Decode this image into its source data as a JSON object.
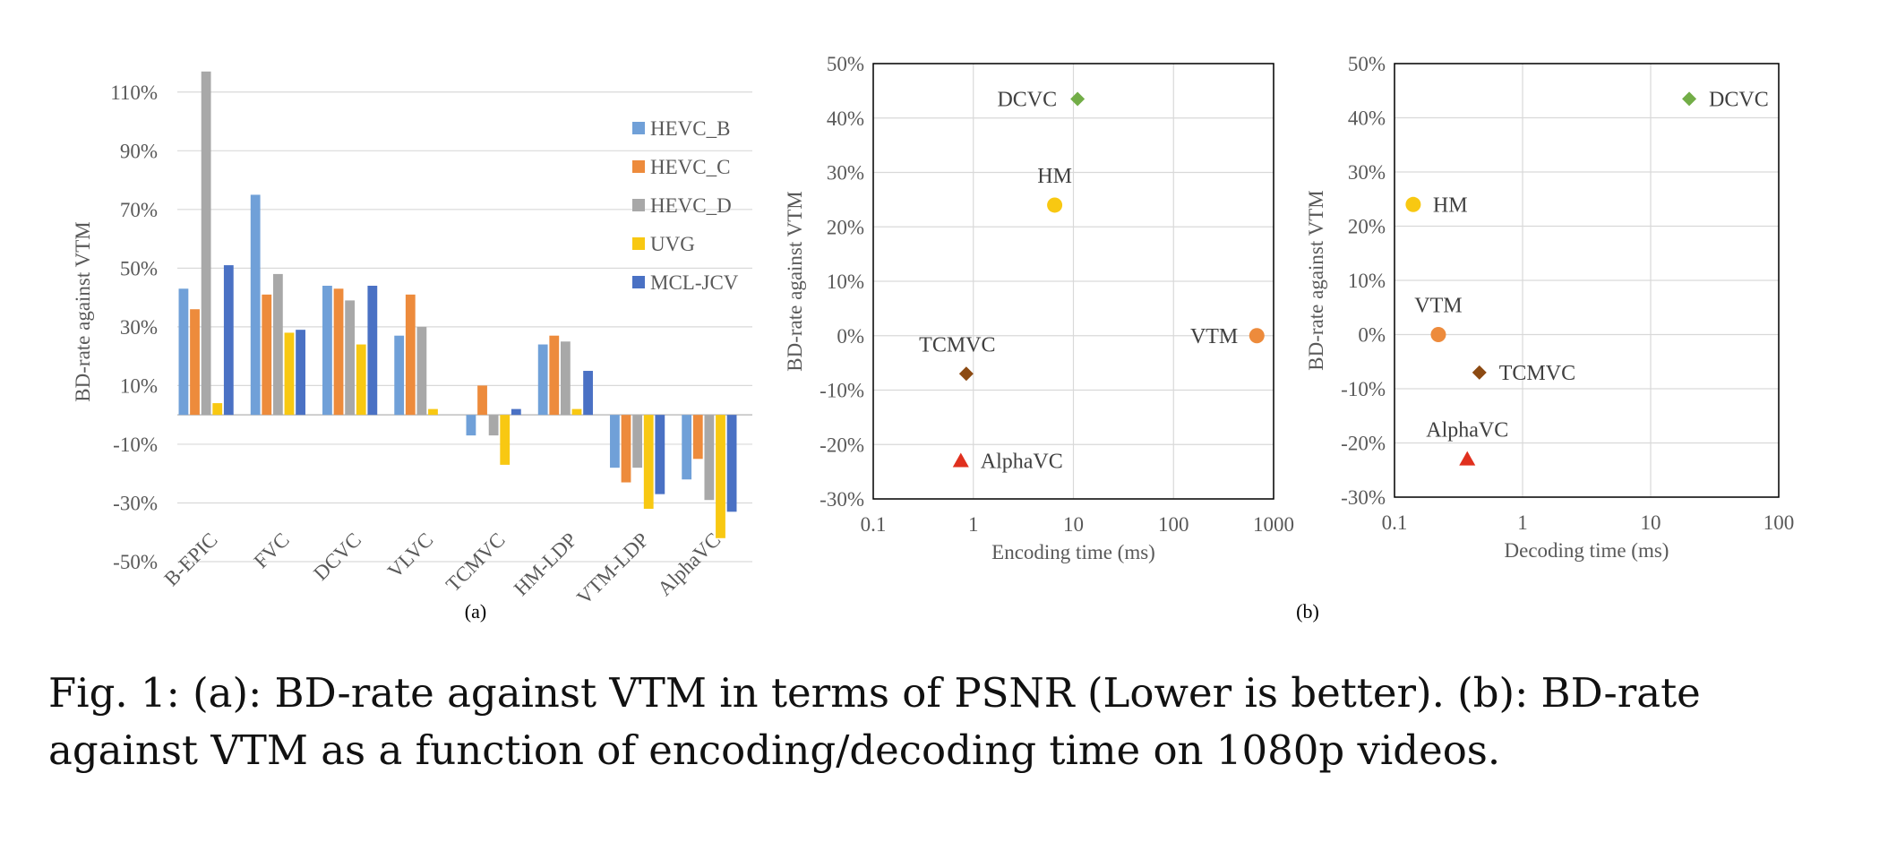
{
  "caption": "Fig. 1: (a): BD-rate against VTM in terms of PSNR (Lower is better). (b): BD-rate against VTM as a function of encoding/decoding time on 1080p videos.",
  "colors": {
    "HEVC_B": "#70a0d8",
    "HEVC_C": "#ed8b3c",
    "HEVC_D": "#a8a8a8",
    "UVG": "#f8c812",
    "MCL-JCV": "#4a71c4",
    "DCVC": "#72ad47",
    "HM": "#f8c812",
    "VTM": "#ed8b3c",
    "TCMVC": "#8c4a12",
    "AlphaVC": "#e0301e"
  },
  "chart_data": [
    {
      "id": "a",
      "type": "bar",
      "sublabel": "(a)",
      "ylabel": "BD-rate against VTM",
      "ylim": [
        -50,
        120
      ],
      "yticks": [
        110,
        90,
        70,
        50,
        30,
        10,
        -10,
        -30,
        -50
      ],
      "ytick_labels": [
        "110%",
        "90%",
        "70%",
        "50%",
        "30%",
        "10%",
        "-10%",
        "-30%",
        "-50%"
      ],
      "grid": true,
      "legend_position": "right",
      "categories": [
        "B-EPIC",
        "FVC",
        "DCVC",
        "VLVC",
        "TCMVC",
        "HM-LDP",
        "VTM-LDP",
        "AlphaVC"
      ],
      "series": [
        {
          "name": "HEVC_B",
          "values": [
            43,
            75,
            44,
            27,
            -7,
            24,
            -18,
            -22
          ]
        },
        {
          "name": "HEVC_C",
          "values": [
            36,
            41,
            43,
            41,
            10,
            27,
            -23,
            -15
          ]
        },
        {
          "name": "HEVC_D",
          "values": [
            117,
            48,
            39,
            30,
            -7,
            25,
            -18,
            -29
          ]
        },
        {
          "name": "UVG",
          "values": [
            4,
            28,
            24,
            2,
            -17,
            2,
            -32,
            -42
          ]
        },
        {
          "name": "MCL-JCV",
          "values": [
            51,
            29,
            44,
            null,
            2,
            15,
            -27,
            -33
          ]
        }
      ]
    },
    {
      "id": "b-enc",
      "type": "scatter",
      "sublabel": "(b)",
      "xlabel": "Encoding time (ms)",
      "ylabel": "BD-rate against VTM",
      "xscale": "log",
      "xlim": [
        0.1,
        1000
      ],
      "xticks": [
        0.1,
        1,
        10,
        100,
        1000
      ],
      "xtick_labels": [
        "0.1",
        "1",
        "10",
        "100",
        "1000"
      ],
      "ylim": [
        -30,
        50
      ],
      "yticks": [
        50,
        40,
        30,
        20,
        10,
        0,
        -10,
        -20,
        -30
      ],
      "ytick_labels": [
        "50%",
        "40%",
        "30%",
        "20%",
        "10%",
        "0%",
        "-10%",
        "-20%",
        "-30%"
      ],
      "grid": true,
      "points": [
        {
          "label": "DCVC",
          "x": 11,
          "y": 43.5,
          "marker": "diamond"
        },
        {
          "label": "HM",
          "x": 6.5,
          "y": 24,
          "marker": "circle"
        },
        {
          "label": "VTM",
          "x": 680,
          "y": 0,
          "marker": "circle"
        },
        {
          "label": "TCMVC",
          "x": 0.85,
          "y": -7,
          "marker": "diamond"
        },
        {
          "label": "AlphaVC",
          "x": 0.75,
          "y": -23,
          "marker": "triangle"
        }
      ]
    },
    {
      "id": "b-dec",
      "type": "scatter",
      "xlabel": "Decoding time (ms)",
      "ylabel": "BD-rate against VTM",
      "xscale": "log",
      "xlim": [
        0.1,
        100
      ],
      "xticks": [
        0.1,
        1,
        10,
        100
      ],
      "xtick_labels": [
        "0.1",
        "1",
        "10",
        "100"
      ],
      "ylim": [
        -30,
        50
      ],
      "yticks": [
        50,
        40,
        30,
        20,
        10,
        0,
        -10,
        -20,
        -30
      ],
      "ytick_labels": [
        "50%",
        "40%",
        "30%",
        "20%",
        "10%",
        "0%",
        "-10%",
        "-20%",
        "-30%"
      ],
      "grid": true,
      "points": [
        {
          "label": "DCVC",
          "x": 20,
          "y": 43.5,
          "marker": "diamond"
        },
        {
          "label": "HM",
          "x": 0.14,
          "y": 24,
          "marker": "circle"
        },
        {
          "label": "VTM",
          "x": 0.22,
          "y": 0,
          "marker": "circle"
        },
        {
          "label": "TCMVC",
          "x": 0.46,
          "y": -7,
          "marker": "diamond"
        },
        {
          "label": "AlphaVC",
          "x": 0.37,
          "y": -23,
          "marker": "triangle"
        }
      ]
    }
  ]
}
